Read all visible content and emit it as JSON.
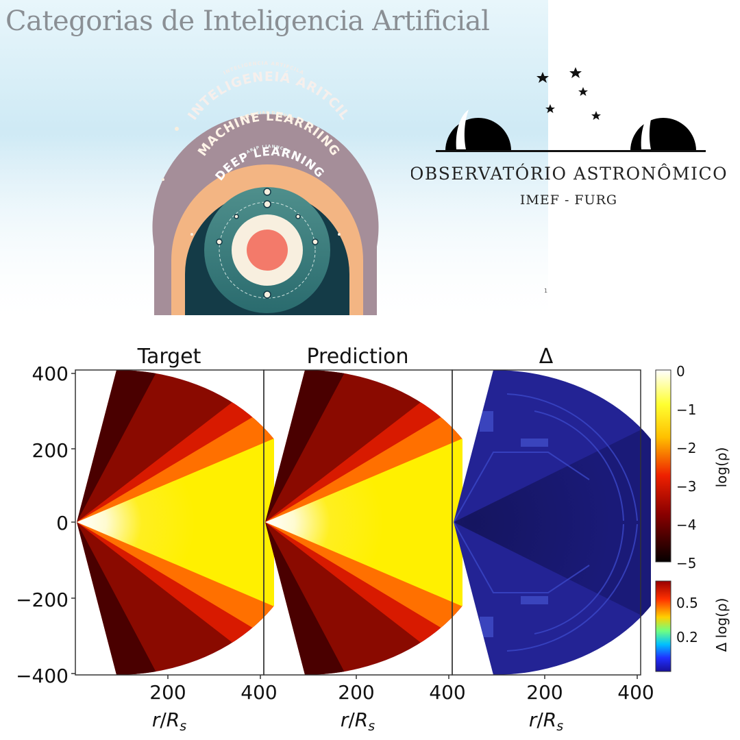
{
  "page_title": "Categorias de Inteligencia Artificial",
  "ai_figure": {
    "ring_outer_caption": "INTELIGENCIA ARTIFCILA",
    "ring_outer_label": "INTELIGENEIÁ ARITCIL",
    "ring_middle_caption": "ARTFICIAL DABURA",
    "ring_middle_label": "MACHINE LEARRIING",
    "ring_inner_caption": "ARIP LIANNCGA",
    "ring_inner_label": "DEEP LEARNING",
    "colors": {
      "outer": "#a58e99",
      "middle": "#f3b583",
      "inner": "#143b47",
      "core": "#f37a6a"
    }
  },
  "logo": {
    "name": "OBSERVATÓRIO ASTRONÔMICO",
    "sub": "IMEF - FURG"
  },
  "small_mark": "1",
  "chart_data": [
    {
      "type": "heatmap",
      "title": "Target",
      "xlabel": "r/Rs",
      "x_ticks": [
        "200",
        "400"
      ],
      "y_ticks": [
        "400",
        "200",
        "0",
        "−200",
        "−400"
      ],
      "xlim": [
        0,
        400
      ],
      "ylim": [
        -400,
        400
      ]
    },
    {
      "type": "heatmap",
      "title": "Prediction",
      "xlabel": "r/Rs",
      "x_ticks": [
        "200",
        "400"
      ],
      "xlim": [
        0,
        400
      ],
      "ylim": [
        -400,
        400
      ]
    },
    {
      "type": "heatmap",
      "title": "Δ",
      "xlabel": "r/Rs",
      "x_ticks": [
        "200",
        "400"
      ],
      "xlim": [
        0,
        400
      ],
      "ylim": [
        -400,
        400
      ]
    }
  ],
  "colorbars": {
    "density": {
      "label": "log(ρ)",
      "ticks": [
        "0",
        "−1",
        "−2",
        "−3",
        "−4",
        "−5"
      ],
      "range": [
        -5,
        0
      ]
    },
    "delta": {
      "label": "Δ log(ρ)",
      "ticks": [
        "0.5",
        "0.2"
      ]
    }
  },
  "plot_labels": {
    "r_symbol": "r",
    "slash": "/",
    "R_symbol": "R",
    "sub": "s"
  }
}
